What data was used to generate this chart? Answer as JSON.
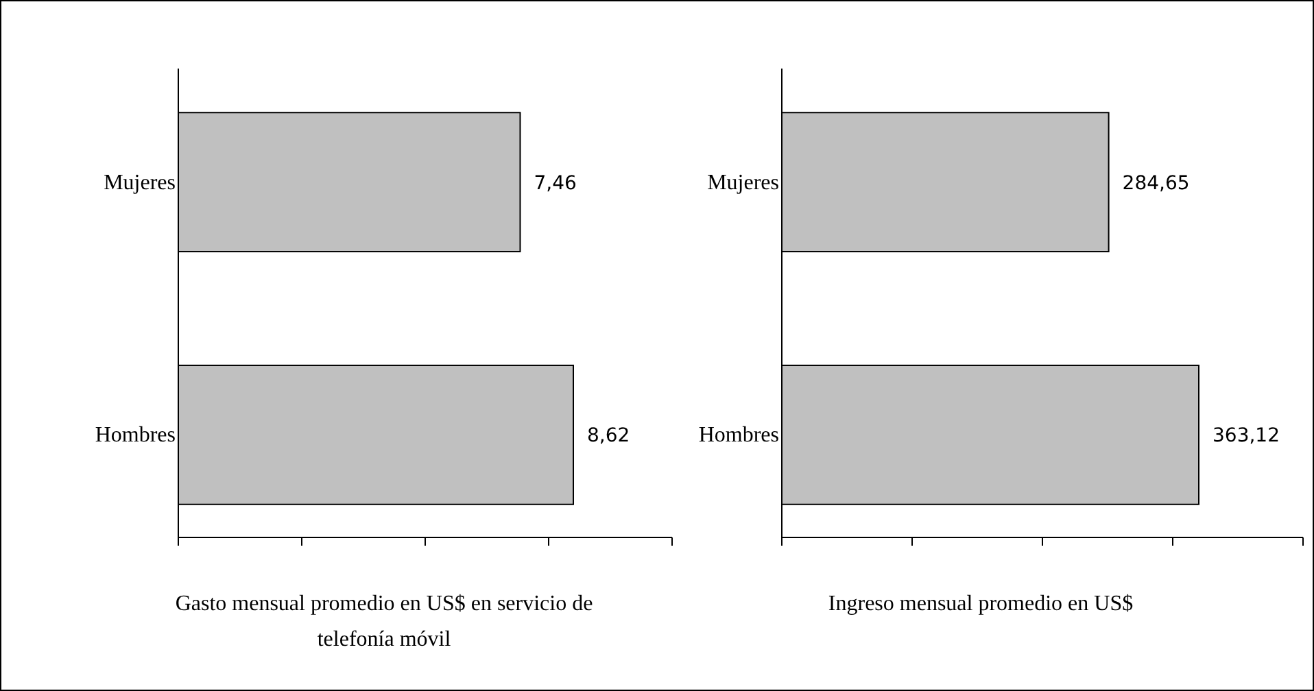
{
  "chart_data": [
    {
      "type": "bar",
      "orientation": "horizontal",
      "categories": [
        "Mujeres",
        "Hombres"
      ],
      "values": [
        7.46,
        8.62
      ],
      "value_labels": [
        "7,46",
        "8,62"
      ],
      "color": "#c0c0c0",
      "xlabel": "Gasto mensual promedio en US$ en servicio de telefonía móvil"
    },
    {
      "type": "bar",
      "orientation": "horizontal",
      "categories": [
        "Mujeres",
        "Hombres"
      ],
      "values": [
        284.65,
        363.12
      ],
      "value_labels": [
        "284,65",
        "363,12"
      ],
      "color": "#c0c0c0",
      "xlabel": "Ingreso mensual promedio en US$"
    }
  ]
}
